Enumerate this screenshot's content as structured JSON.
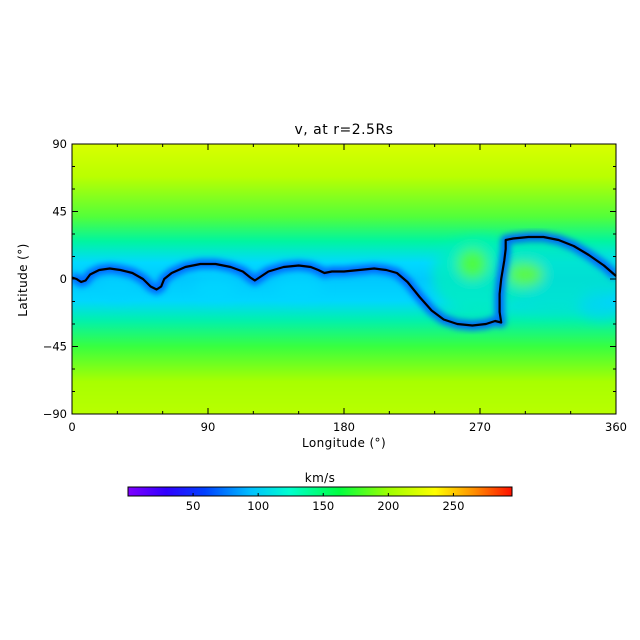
{
  "chart_data": {
    "type": "heatmap",
    "title": "v, at r=2.5Rs",
    "xlabel": "Longitude (°)",
    "ylabel": "Latitude (°)",
    "xlim": [
      0,
      360
    ],
    "ylim": [
      -90,
      90
    ],
    "xticks": [
      "0",
      "90",
      "180",
      "270",
      "360"
    ],
    "yticks": [
      "90",
      "45",
      "0",
      "−45",
      "−90"
    ],
    "colorbar": {
      "label": "km/s",
      "range": [
        0,
        295
      ],
      "ticks": [
        "50",
        "100",
        "150",
        "200",
        "250"
      ],
      "tick_values": [
        50,
        100,
        150,
        200,
        250
      ],
      "colormap": "rainbow"
    },
    "field_description": {
      "polar_value": 225,
      "equatorial_min": 65,
      "note": "slow wind band along the neutral line; fast wind at high latitudes"
    },
    "neutral_line": [
      [
        0,
        1
      ],
      [
        3,
        0
      ],
      [
        6,
        -2
      ],
      [
        9,
        -1
      ],
      [
        12,
        3
      ],
      [
        18,
        6
      ],
      [
        25,
        7
      ],
      [
        32,
        6
      ],
      [
        40,
        4
      ],
      [
        47,
        0
      ],
      [
        52,
        -5
      ],
      [
        56,
        -7
      ],
      [
        59,
        -5
      ],
      [
        61,
        0
      ],
      [
        66,
        4
      ],
      [
        75,
        8
      ],
      [
        85,
        10
      ],
      [
        95,
        10
      ],
      [
        105,
        8
      ],
      [
        113,
        5
      ],
      [
        118,
        1
      ],
      [
        121,
        -1
      ],
      [
        124,
        1
      ],
      [
        130,
        5
      ],
      [
        140,
        8
      ],
      [
        150,
        9
      ],
      [
        158,
        8
      ],
      [
        163,
        6
      ],
      [
        167,
        4
      ],
      [
        172,
        5
      ],
      [
        180,
        5
      ],
      [
        190,
        6
      ],
      [
        200,
        7
      ],
      [
        208,
        6
      ],
      [
        215,
        4
      ],
      [
        222,
        -2
      ],
      [
        230,
        -12
      ],
      [
        238,
        -21
      ],
      [
        246,
        -27
      ],
      [
        255,
        -30
      ],
      [
        265,
        -31
      ],
      [
        274,
        -30
      ],
      [
        280,
        -28
      ],
      [
        284,
        -29
      ],
      [
        283,
        -22
      ],
      [
        283,
        -10
      ],
      [
        284,
        0
      ],
      [
        286,
        12
      ],
      [
        287,
        20
      ],
      [
        287,
        26
      ],
      [
        292,
        27
      ],
      [
        302,
        28
      ],
      [
        312,
        28
      ],
      [
        322,
        26
      ],
      [
        332,
        22
      ],
      [
        342,
        16
      ],
      [
        352,
        9
      ],
      [
        360,
        2
      ]
    ]
  }
}
